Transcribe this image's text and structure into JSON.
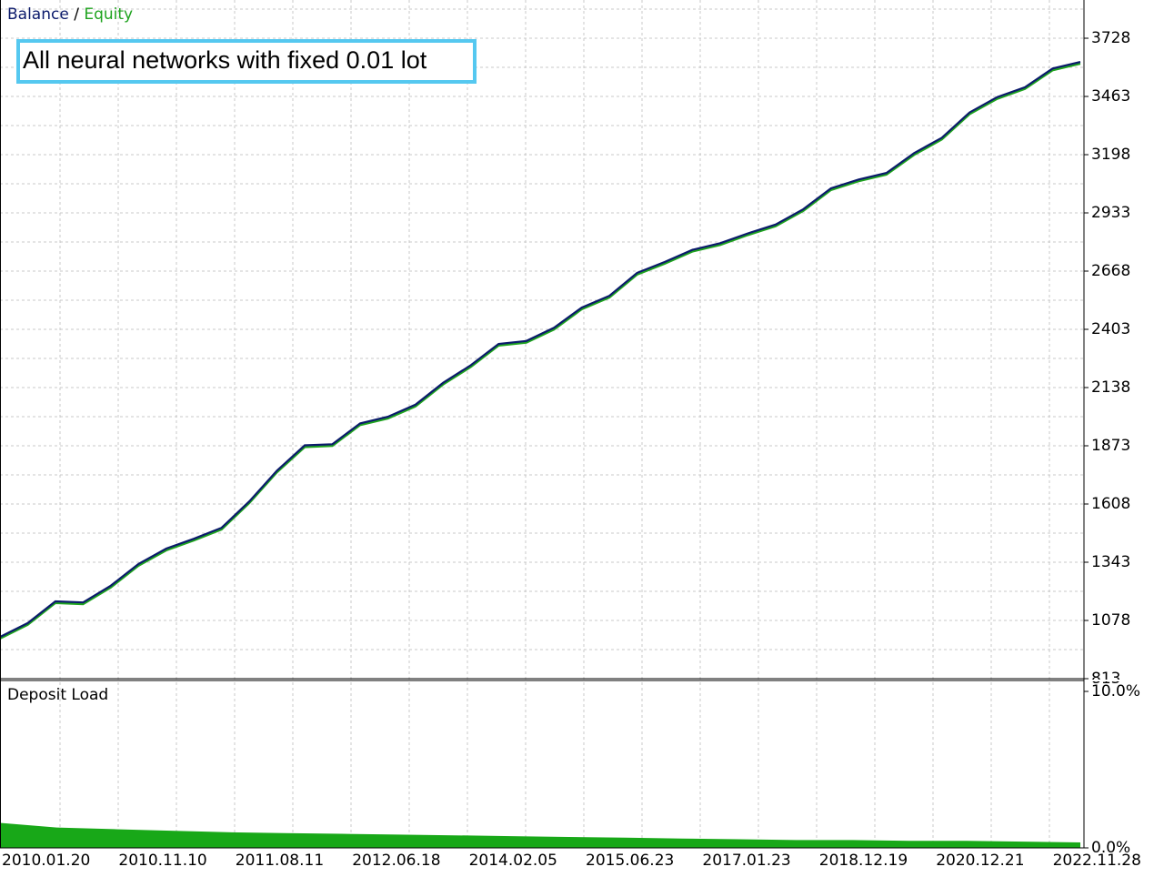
{
  "chart_data": [
    {
      "type": "line",
      "legend_separator": "/",
      "annotation": "All neural networks with fixed 0.01 lot",
      "series": [
        {
          "name": "Equity",
          "color": "#1fa31f",
          "values": [
            995,
            1058,
            1157,
            1152,
            1228,
            1327,
            1397,
            1442,
            1492,
            1612,
            1752,
            1867,
            1872,
            1967,
            1997,
            2052,
            2152,
            2232,
            2329,
            2342,
            2402,
            2494,
            2548,
            2652,
            2702,
            2757,
            2787,
            2832,
            2872,
            2942,
            3037,
            3077,
            3107,
            3197,
            3267,
            3382,
            3452,
            3497,
            3582,
            3612
          ]
        },
        {
          "name": "Balance",
          "color": "#0b1a6b",
          "values": [
            1003,
            1066,
            1165,
            1160,
            1236,
            1335,
            1405,
            1450,
            1500,
            1620,
            1760,
            1875,
            1880,
            1975,
            2005,
            2060,
            2160,
            2240,
            2337,
            2350,
            2410,
            2502,
            2556,
            2660,
            2710,
            2765,
            2795,
            2840,
            2880,
            2950,
            3045,
            3085,
            3115,
            3205,
            3275,
            3390,
            3460,
            3505,
            3590,
            3620
          ]
        }
      ],
      "ylim": [
        813,
        3902
      ],
      "yticks": [
        813,
        1078,
        1343,
        1608,
        1873,
        2138,
        2403,
        2668,
        2933,
        3198,
        3463,
        3728
      ],
      "grid": true
    },
    {
      "type": "area",
      "title": "Deposit Load",
      "color": "#18a818",
      "values": [
        1.6,
        1.3,
        1.2,
        1.1,
        1.0,
        0.95,
        0.9,
        0.85,
        0.8,
        0.75,
        0.7,
        0.65,
        0.6,
        0.55,
        0.5,
        0.5,
        0.45,
        0.45,
        0.4,
        0.35
      ],
      "ylim": [
        0,
        10
      ],
      "yticks": [
        {
          "value": 0,
          "label": "0.0%"
        },
        {
          "value": 10,
          "label": "10.0%"
        }
      ],
      "x_labels": [
        "2010.01.20",
        "2010.11.10",
        "2011.08.11",
        "2012.06.18",
        "2014.02.05",
        "2015.06.23",
        "2017.01.23",
        "2018.12.19",
        "2020.12.21",
        "2022.11.28"
      ]
    }
  ]
}
